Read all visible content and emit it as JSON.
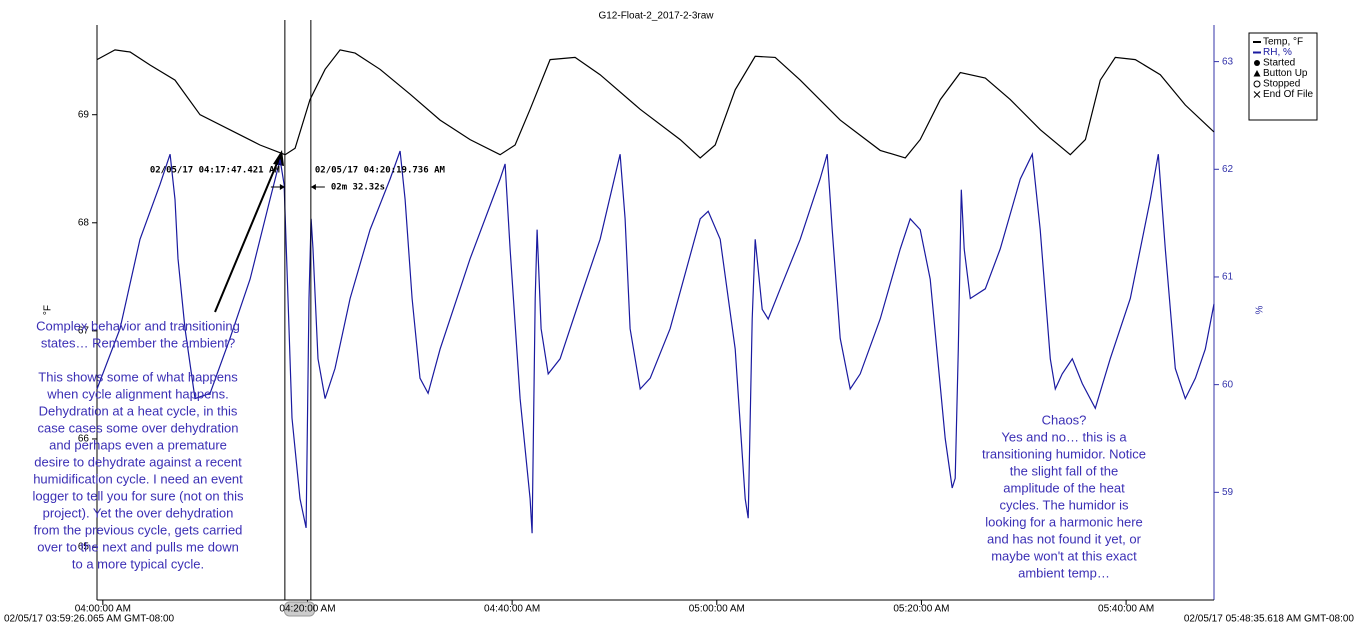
{
  "chart_data": {
    "type": "line",
    "title": "G12-Float-2_2017-2-3raw",
    "ylabel": "°F",
    "y2label": "%",
    "xlim": [
      -0.57,
      108.59
    ],
    "xticks": [
      {
        "value": 0,
        "label": "04:00:00 AM"
      },
      {
        "value": 20,
        "label": "04:20:00 AM"
      },
      {
        "value": 40,
        "label": "04:40:00 AM"
      },
      {
        "value": 60,
        "label": "05:00:00 AM"
      },
      {
        "value": 80,
        "label": "05:20:00 AM"
      },
      {
        "value": 100,
        "label": "05:40:00 AM"
      }
    ],
    "ylim": [
      64.51,
      69.83
    ],
    "yticks": [
      65,
      66,
      67,
      68,
      69
    ],
    "y2lim": [
      58.0,
      63.34
    ],
    "y2ticks": [
      59,
      60,
      61,
      62,
      63
    ],
    "series": [
      {
        "name": "Temp, °F",
        "color": "#000000",
        "x": [
          -0.57,
          1.19,
          2.66,
          4.61,
          7.05,
          9.5,
          12.43,
          15.36,
          17.81,
          18.79,
          20.25,
          21.72,
          23.19,
          24.65,
          27.09,
          30.03,
          32.96,
          35.89,
          38.82,
          40.29,
          41.76,
          43.71,
          46.15,
          48.6,
          52.51,
          56.42,
          58.38,
          59.84,
          61.8,
          63.75,
          65.71,
          68.15,
          72.06,
          75.97,
          78.42,
          79.88,
          81.84,
          83.8,
          86.24,
          88.68,
          91.62,
          94.55,
          96.02,
          97.48,
          98.94,
          100.9,
          103.34,
          105.79,
          108.59
        ],
        "values": [
          69.51,
          69.6,
          69.58,
          69.46,
          69.32,
          69.0,
          68.86,
          68.72,
          68.63,
          68.69,
          69.14,
          69.42,
          69.6,
          69.57,
          69.42,
          69.19,
          68.95,
          68.77,
          68.63,
          68.72,
          69.05,
          69.51,
          69.53,
          69.37,
          69.05,
          68.77,
          68.6,
          68.72,
          69.23,
          69.54,
          69.53,
          69.32,
          68.95,
          68.67,
          68.6,
          68.77,
          69.14,
          69.39,
          69.34,
          69.14,
          68.86,
          68.63,
          68.77,
          69.32,
          69.53,
          69.51,
          69.37,
          69.09,
          68.84
        ]
      },
      {
        "name": "RH, %",
        "color": "#1a1aa0",
        "axis": "y2",
        "x": [
          -0.57,
          1.68,
          3.63,
          5.59,
          6.57,
          7.05,
          7.35,
          8.03,
          9.01,
          10.48,
          12.43,
          14.39,
          16.34,
          17.32,
          17.71,
          18.1,
          18.49,
          19.27,
          19.86,
          20.15,
          20.35,
          20.54,
          21.03,
          21.72,
          22.69,
          24.16,
          26.12,
          28.07,
          29.05,
          29.54,
          30.22,
          31.0,
          31.79,
          32.96,
          35.89,
          38.82,
          39.31,
          39.8,
          40.78,
          41.76,
          41.95,
          42.25,
          42.44,
          42.83,
          43.52,
          44.69,
          46.64,
          48.6,
          50.55,
          51.04,
          51.53,
          52.51,
          53.49,
          55.44,
          58.38,
          59.16,
          60.33,
          61.8,
          62.78,
          63.07,
          63.46,
          63.75,
          64.44,
          65.02,
          66.2,
          68.15,
          70.1,
          70.79,
          71.28,
          72.06,
          73.04,
          74.01,
          75.97,
          77.92,
          78.9,
          79.88,
          80.86,
          82.32,
          83.01,
          83.3,
          83.6,
          83.89,
          84.18,
          84.77,
          86.24,
          87.7,
          89.66,
          90.83,
          91.61,
          92.59,
          93.08,
          93.76,
          94.74,
          95.72,
          96.99,
          98.45,
          100.41,
          102.36,
          103.15,
          103.83,
          104.81,
          105.79,
          106.77,
          107.74,
          108.59
        ],
        "values": [
          59.96,
          60.52,
          61.35,
          61.86,
          62.14,
          61.72,
          61.17,
          60.52,
          59.87,
          59.92,
          60.43,
          60.98,
          61.72,
          62.09,
          61.86,
          60.8,
          59.69,
          58.94,
          58.67,
          60.8,
          61.54,
          61.26,
          60.24,
          59.87,
          60.15,
          60.8,
          61.44,
          61.91,
          62.17,
          61.72,
          60.8,
          60.06,
          59.92,
          60.33,
          61.17,
          61.91,
          62.05,
          61.26,
          59.87,
          58.94,
          58.62,
          60.8,
          61.44,
          60.52,
          60.1,
          60.24,
          60.8,
          61.35,
          62.14,
          61.54,
          60.52,
          59.96,
          60.06,
          60.52,
          61.54,
          61.61,
          61.35,
          60.33,
          58.94,
          58.76,
          60.61,
          61.35,
          60.7,
          60.61,
          60.89,
          61.35,
          61.91,
          62.14,
          61.44,
          60.43,
          59.96,
          60.1,
          60.61,
          61.26,
          61.54,
          61.44,
          60.98,
          59.5,
          59.04,
          59.13,
          60.33,
          61.81,
          61.26,
          60.8,
          60.89,
          61.26,
          61.91,
          62.14,
          61.44,
          60.24,
          59.96,
          60.1,
          60.24,
          60.01,
          59.78,
          60.24,
          60.8,
          61.72,
          62.14,
          61.26,
          60.15,
          59.87,
          60.06,
          60.33,
          60.75
        ]
      }
    ],
    "legend_extra": [
      "Started",
      "Button Up",
      "Stopped",
      "End Of File"
    ],
    "legend": "top-right",
    "cursors": [
      {
        "x": 17.79,
        "label": "02/05/17 04:17:47.421 AM"
      },
      {
        "x": 20.33,
        "label": "02/05/17 04:20:19.736 AM"
      }
    ],
    "cursor_delta": "02m 32.32s",
    "start_label": "02/05/17 03:59:26.065 AM GMT-08:00",
    "end_label": "02/05/17 05:48:35.618 AM GMT-08:00",
    "annotations": [
      {
        "paragraphs": [
          [
            "Complex behavior and transitioning",
            "states… Remember the ambient?"
          ],
          [
            "This shows some of what happens",
            "when cycle alignment happens.",
            "Dehydration at a heat cycle, in this",
            "case cases some over dehydration",
            "and perhaps even a premature",
            "desire to dehydrate against a recent",
            "humidification cycle. I need an event",
            "logger to tell you for sure (not on this",
            "project). Yet the over dehydration",
            "from the previous cycle, gets carried",
            "over to the next and pulls me down",
            "to a more typical cycle."
          ]
        ]
      },
      {
        "paragraphs": [
          [
            "Chaos?",
            "Yes and no… this is a",
            "transitioning humidor. Notice",
            "the slight fall of the",
            "amplitude of the heat",
            "cycles. The humidor is",
            "looking for a harmonic here",
            "and has not found it yet, or",
            "maybe won't at this exact",
            "ambient temp…"
          ]
        ]
      }
    ]
  }
}
